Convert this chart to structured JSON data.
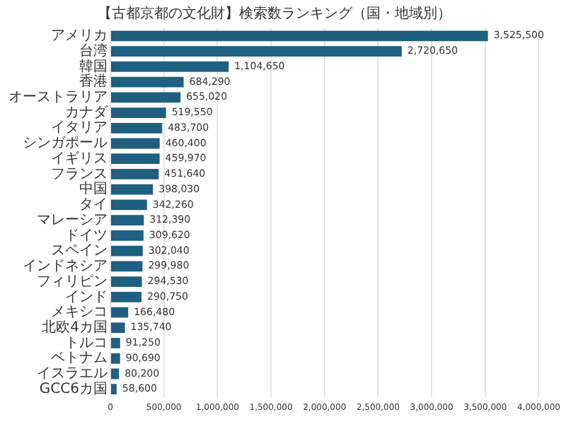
{
  "chart_data": {
    "type": "bar",
    "orientation": "horizontal",
    "title": "【古都京都の文化財】検索数ランキング（国・地域別）",
    "categories": [
      "アメリカ",
      "台湾",
      "韓国",
      "香港",
      "オーストラリア",
      "カナダ",
      "イタリア",
      "シンガポール",
      "イギリス",
      "フランス",
      "中国",
      "タイ",
      "マレーシア",
      "ドイツ",
      "スペイン",
      "インドネシア",
      "フィリピン",
      "インド",
      "メキシコ",
      "北欧4カ国",
      "トルコ",
      "ベトナム",
      "イスラエル",
      "GCC6カ国"
    ],
    "values": [
      3525500,
      2720650,
      1104650,
      684290,
      655020,
      519550,
      483700,
      460400,
      459970,
      451640,
      398030,
      342260,
      312390,
      309620,
      302040,
      299980,
      294530,
      290750,
      166480,
      135740,
      91250,
      90690,
      80200,
      58600
    ],
    "value_labels": [
      "3,525,500",
      "2,720,650",
      "1,104,650",
      "684,290",
      "655,020",
      "519,550",
      "483,700",
      "460,400",
      "459,970",
      "451,640",
      "398,030",
      "342,260",
      "312,390",
      "309,620",
      "302,040",
      "299,980",
      "294,530",
      "290,750",
      "166,480",
      "135,740",
      "91,250",
      "90,690",
      "80,200",
      "58,600"
    ],
    "color": "#1f5f80",
    "xlim": [
      0,
      4000000
    ],
    "xticks": [
      0,
      {
        "value": 500000,
        "label": "500,000"
      },
      {
        "value": 1000000,
        "label": "1,000,000"
      },
      {
        "value": 1500000,
        "label": "1,500,000"
      },
      {
        "value": 2000000,
        "label": "2,000,000"
      },
      {
        "value": 2500000,
        "label": "2,500,000"
      },
      {
        "value": 3000000,
        "label": "3,000,000"
      },
      {
        "value": 3500000,
        "label": "3,500,000"
      },
      {
        "value": 4000000,
        "label": "4,000,000"
      }
    ],
    "grid": "x",
    "legend": false
  }
}
